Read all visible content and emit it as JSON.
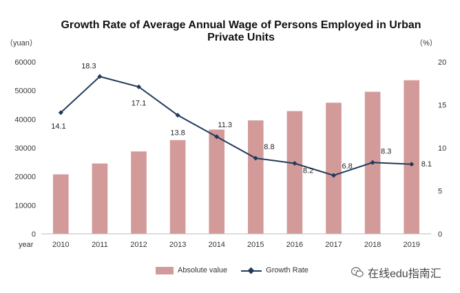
{
  "chart_data": {
    "type": "bar",
    "title_line1": "Growth Rate of Average Annual Wage of Persons Employed in Urban",
    "title_line2": "Private Units",
    "left_unit": "（yuan）",
    "right_unit": "（%）",
    "xlabel": "year",
    "categories": [
      "2010",
      "2011",
      "2012",
      "2013",
      "2014",
      "2015",
      "2016",
      "2017",
      "2018",
      "2019"
    ],
    "series": [
      {
        "name": "Absolute value",
        "kind": "bar",
        "axis": "left",
        "color": "#d39a9a",
        "values": [
          20759,
          24556,
          28752,
          32706,
          36390,
          39589,
          42833,
          45761,
          49575,
          53604
        ]
      },
      {
        "name": "Growth Rate",
        "kind": "line",
        "axis": "right",
        "color": "#203a5a",
        "values": [
          14.1,
          18.3,
          17.1,
          13.8,
          11.3,
          8.8,
          8.2,
          6.8,
          8.3,
          8.1
        ],
        "labels": [
          "14.1",
          "18.3",
          "17.1",
          "13.8",
          "11.3",
          "8.8",
          "8.2",
          "6.8",
          "8.3",
          "8.1"
        ]
      }
    ],
    "ylim_left": [
      0,
      60000
    ],
    "yticks_left": [
      0,
      10000,
      20000,
      30000,
      40000,
      50000,
      60000
    ],
    "ylim_right": [
      0,
      20
    ],
    "yticks_right": [
      0,
      5,
      10,
      15,
      20
    ],
    "legend": [
      "Absolute value",
      "Growth Rate"
    ],
    "legend_position": "bottom"
  },
  "watermark": {
    "text": "在线edu指南汇",
    "icon": "wechat-icon"
  }
}
